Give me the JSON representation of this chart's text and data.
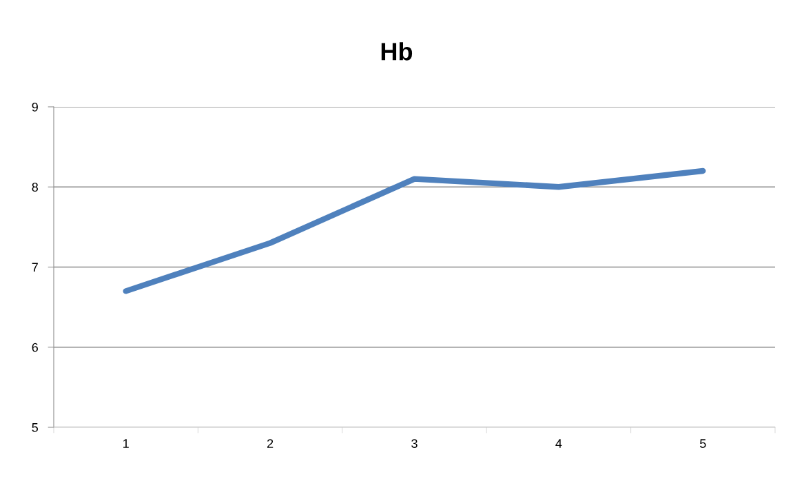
{
  "chart_data": {
    "type": "line",
    "title": "Hb",
    "categories": [
      "1",
      "2",
      "3",
      "4",
      "5"
    ],
    "series": [
      {
        "color": "#4f81bd",
        "values": [
          6.7,
          7.3,
          8.1,
          8.0,
          8.2
        ]
      }
    ],
    "ylim": [
      5,
      9
    ],
    "yticks": [
      5,
      6,
      7,
      8,
      9
    ],
    "grid": "y",
    "marker": "none",
    "line_style": "solid"
  }
}
